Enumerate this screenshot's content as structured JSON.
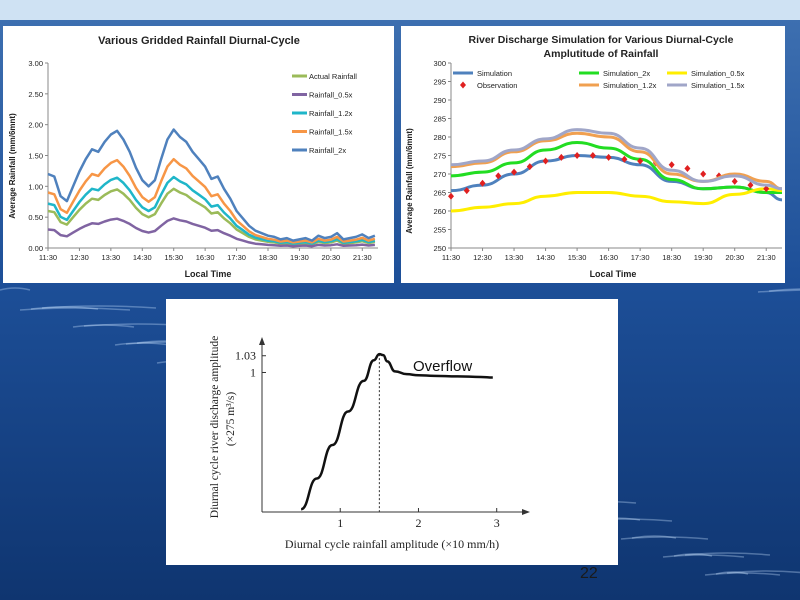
{
  "background": {
    "sky_top": "#cfe2f3",
    "sea_top": "#3d6fb0",
    "sea_mid": "#1d4f98",
    "sea_bottom": "#0f3570"
  },
  "slide_number": "22",
  "chart_data": [
    {
      "type": "line",
      "title": "Various Gridded Rainfall Diurnal-Cycle",
      "xlabel": "Local Time",
      "ylabel": "Average Rainfall (mm/6mnt)",
      "x_ticks": [
        "11:30",
        "12:30",
        "13:30",
        "14:30",
        "15:30",
        "16:30",
        "17:30",
        "18:30",
        "19:30",
        "20:30",
        "21:30"
      ],
      "xlim": [
        "11:30",
        "22:00"
      ],
      "ylim": [
        0,
        3.0
      ],
      "y_ticks": [
        "0.00",
        "0.50",
        "1.00",
        "1.50",
        "2.00",
        "2.50",
        "3.00"
      ],
      "legend_position": "right",
      "series": [
        {
          "name": "Actual Rainfall",
          "color": "#9bbb59"
        },
        {
          "name": "Rainfall_0.5x",
          "color": "#8064a2"
        },
        {
          "name": "Rainfall_1.2x",
          "color": "#1fb6c9"
        },
        {
          "name": "Rainfall_1.5x",
          "color": "#f79646"
        },
        {
          "name": "Rainfall_2x",
          "color": "#4f81bd"
        }
      ],
      "x": [
        "11:30",
        "11:42",
        "11:54",
        "12:06",
        "12:18",
        "12:30",
        "12:42",
        "12:54",
        "13:06",
        "13:18",
        "13:30",
        "13:42",
        "13:54",
        "14:06",
        "14:18",
        "14:30",
        "14:42",
        "14:54",
        "15:06",
        "15:18",
        "15:30",
        "15:42",
        "15:54",
        "16:06",
        "16:18",
        "16:30",
        "16:42",
        "16:54",
        "17:06",
        "17:18",
        "17:30",
        "17:42",
        "17:54",
        "18:06",
        "18:18",
        "18:30",
        "18:42",
        "18:54",
        "19:06",
        "19:18",
        "19:30",
        "19:42",
        "19:54",
        "20:06",
        "20:18",
        "20:30",
        "20:42",
        "20:54",
        "21:06",
        "21:18",
        "21:30",
        "21:42",
        "21:54"
      ],
      "base_values": [
        0.6,
        0.58,
        0.42,
        0.38,
        0.5,
        0.62,
        0.72,
        0.8,
        0.78,
        0.86,
        0.92,
        0.95,
        0.88,
        0.78,
        0.65,
        0.55,
        0.5,
        0.55,
        0.72,
        0.88,
        0.96,
        0.9,
        0.86,
        0.78,
        0.72,
        0.66,
        0.56,
        0.58,
        0.48,
        0.4,
        0.3,
        0.24,
        0.18,
        0.14,
        0.12,
        0.1,
        0.09,
        0.07,
        0.08,
        0.06,
        0.07,
        0.08,
        0.06,
        0.1,
        0.08,
        0.09,
        0.12,
        0.07,
        0.08,
        0.09,
        0.11,
        0.08,
        0.1
      ],
      "multipliers": {
        "Actual Rainfall": 1.0,
        "Rainfall_0.5x": 0.5,
        "Rainfall_1.2x": 1.2,
        "Rainfall_1.5x": 1.5,
        "Rainfall_2x": 2.0
      }
    },
    {
      "type": "line",
      "title": "River Discharge Simulation for Various Diurnal-Cycle Amplutitude of Rainfall",
      "title_lines": [
        "River Discharge Simulation for Various Diurnal-Cycle",
        "Amplutitude of Rainfall"
      ],
      "xlabel": "Local Time",
      "ylabel": "Average Rainfall (mm/6mnt)",
      "x_ticks": [
        "11:30",
        "12:30",
        "13:30",
        "14:30",
        "15:30",
        "16:30",
        "17:30",
        "18:30",
        "19:30",
        "20:30",
        "21:30"
      ],
      "xlim": [
        "11:30",
        "22:00"
      ],
      "ylim": [
        250,
        300
      ],
      "y_ticks": [
        "250",
        "255",
        "260",
        "265",
        "270",
        "275",
        "280",
        "285",
        "290",
        "295",
        "300"
      ],
      "legend_position": "top",
      "x": [
        "11:30",
        "12:30",
        "13:30",
        "14:30",
        "15:30",
        "16:30",
        "17:30",
        "18:30",
        "19:30",
        "20:30",
        "21:30",
        "22:00"
      ],
      "series": [
        {
          "name": "Simulation",
          "color": "#4f81bd",
          "values": [
            265.5,
            267,
            270,
            273.5,
            275,
            274.5,
            272.5,
            268,
            266,
            266.5,
            265,
            263
          ]
        },
        {
          "name": "Simulation_2x",
          "color": "#22dd22",
          "values": [
            269.5,
            270.5,
            273,
            276.5,
            278.5,
            277,
            274,
            268.5,
            266,
            266.5,
            265,
            265
          ]
        },
        {
          "name": "Simulation_0.5x",
          "color": "#ffee00",
          "values": [
            260,
            261,
            262,
            264,
            265,
            265,
            264,
            262.5,
            262,
            264.5,
            266,
            265.5
          ]
        },
        {
          "name": "Observation",
          "color": "#e02020",
          "marker": "diamond",
          "x": [
            "11:30",
            "12:00",
            "12:30",
            "13:00",
            "13:30",
            "14:00",
            "14:30",
            "15:00",
            "15:30",
            "16:00",
            "16:30",
            "17:00",
            "17:30",
            "18:00",
            "18:30",
            "19:00",
            "19:30",
            "20:00",
            "20:30",
            "21:00",
            "21:30"
          ],
          "values": [
            264,
            265.5,
            267.5,
            269.5,
            270.5,
            272,
            273.5,
            274.5,
            275,
            275,
            274.5,
            274,
            273.5,
            273,
            272.5,
            271.5,
            270,
            269.5,
            268,
            267,
            266
          ]
        },
        {
          "name": "Simulation_1.2x",
          "color": "#f0a050",
          "values": [
            272,
            273,
            276,
            279,
            281,
            280,
            276,
            270,
            268,
            270,
            268,
            266
          ]
        },
        {
          "name": "Simulation_1.5x",
          "color": "#a0a6c8",
          "values": [
            272.5,
            273.5,
            276.5,
            279.5,
            282,
            281,
            277,
            271,
            268,
            269.5,
            267,
            266
          ]
        }
      ]
    },
    {
      "type": "line",
      "title": "",
      "xlabel": "Diurnal cycle rainfall amplitude (×10 mm/h)",
      "ylabel": "Diurnal cycle river discharge amplitude (×275 m³/s)",
      "ylabel_line1": "Diurnal cycle river discharge amplitude",
      "ylabel_line2": "(×275 m³/s)",
      "x_ticks": [
        "1",
        "2",
        "3"
      ],
      "y_ticks": [
        "1",
        "1.03"
      ],
      "xlim": [
        0,
        3.4
      ],
      "ylim": [
        0.75,
        1.06
      ],
      "annotation": "Overflow",
      "reference_line": {
        "x": 1.5
      },
      "series": [
        {
          "name": "",
          "x": [
            0.5,
            0.7,
            0.9,
            1.1,
            1.3,
            1.43,
            1.5,
            1.55,
            1.6,
            1.7,
            1.85,
            2.0,
            2.2,
            2.5,
            2.8,
            2.95
          ],
          "values": [
            0.755,
            0.81,
            0.87,
            0.93,
            0.985,
            1.022,
            1.033,
            1.031,
            1.02,
            1.002,
            0.997,
            0.995,
            0.994,
            0.993,
            0.992,
            0.991
          ]
        }
      ]
    }
  ]
}
